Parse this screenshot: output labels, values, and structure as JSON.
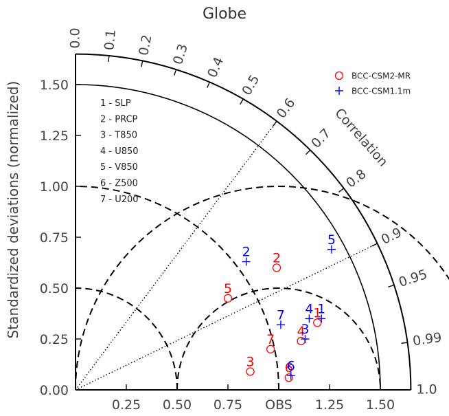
{
  "chart_data": {
    "type": "scatter",
    "subtype": "taylor-diagram",
    "title": "Globe",
    "ylabel": "Standardized deviations (normalized)",
    "correlation_label": "Correlation",
    "reference_label": "OBS",
    "xlim": [
      0,
      1.65
    ],
    "ylim": [
      0,
      1.65
    ],
    "x_ticks": [
      "0.25",
      "0.50",
      "0.75",
      "OBS",
      "1.25",
      "1.50"
    ],
    "y_ticks": [
      "0.00",
      "0.25",
      "0.50",
      "0.75",
      "1.00",
      "1.25",
      "1.50"
    ],
    "correlation_ticks": [
      "0.0",
      "0.1",
      "0.2",
      "0.3",
      "0.4",
      "0.5",
      "0.6",
      "0.7",
      "0.8",
      "0.9",
      "0.95",
      "0.99",
      "1.0"
    ],
    "rms_arcs": [
      0.5,
      1.0
    ],
    "variable_key": [
      "1 - SLP",
      "2 - PRCP",
      "3 - T850",
      "4 - U850",
      "5 - V850",
      "6 - Z500",
      "7 - U200"
    ],
    "legend_position": "top-right",
    "series": [
      {
        "name": "BCC-CSM2-MR",
        "marker": "circle",
        "color": "#ff0000",
        "points": [
          {
            "id": "1",
            "x": 1.19,
            "y": 0.33
          },
          {
            "id": "2",
            "x": 0.99,
            "y": 0.6
          },
          {
            "id": "3",
            "x": 0.86,
            "y": 0.09
          },
          {
            "id": "4",
            "x": 1.11,
            "y": 0.24
          },
          {
            "id": "5",
            "x": 0.75,
            "y": 0.45
          },
          {
            "id": "6",
            "x": 1.05,
            "y": 0.06
          },
          {
            "id": "7",
            "x": 0.96,
            "y": 0.2
          }
        ]
      },
      {
        "name": "BCC-CSM1.1m",
        "marker": "plus",
        "color": "#0000ff",
        "points": [
          {
            "id": "1",
            "x": 1.21,
            "y": 0.35
          },
          {
            "id": "2",
            "x": 0.84,
            "y": 0.63
          },
          {
            "id": "3",
            "x": 1.13,
            "y": 0.25
          },
          {
            "id": "4",
            "x": 1.15,
            "y": 0.35
          },
          {
            "id": "5",
            "x": 1.26,
            "y": 0.69
          },
          {
            "id": "6",
            "x": 1.06,
            "y": 0.07
          },
          {
            "id": "7",
            "x": 1.01,
            "y": 0.32
          }
        ]
      }
    ]
  }
}
